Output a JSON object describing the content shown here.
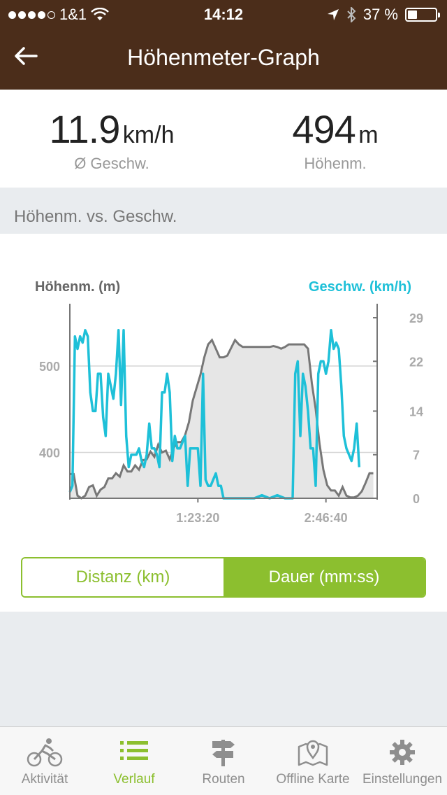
{
  "status_bar": {
    "carrier": "1&1",
    "time": "14:12",
    "battery": "37 %"
  },
  "nav": {
    "title": "Höhenmeter-Graph",
    "back_icon": "arrow-left-icon"
  },
  "stats": {
    "speed": {
      "value": "11.9",
      "unit": "km/h",
      "label": "Ø Geschw."
    },
    "elevation": {
      "value": "494",
      "unit": "m",
      "label": "Höhenm."
    }
  },
  "section": {
    "title": "Höhenm. vs. Geschw."
  },
  "chart_data": {
    "type": "line",
    "left_axis": {
      "label": "Höhenm. (m)",
      "ticks": [
        "400",
        "500"
      ],
      "ylim": [
        347,
        572
      ]
    },
    "right_axis": {
      "label": "Geschw. (km/h)",
      "ticks": [
        "0",
        "7",
        "14",
        "22",
        "29"
      ],
      "ylim": [
        0,
        29
      ]
    },
    "x_ticks": [
      {
        "label": "1:23:20",
        "value": 5000
      },
      {
        "label": "2:46:40",
        "value": 10000
      }
    ],
    "xlim": [
      0,
      12000
    ],
    "colors": {
      "elevation": "#777777",
      "speed": "#1ec0d8",
      "fill": "#e6e6e6"
    },
    "series": [
      {
        "values": [
          [
            0,
            375
          ],
          [
            150,
            375
          ],
          [
            300,
            350
          ],
          [
            450,
            347
          ],
          [
            600,
            350
          ],
          [
            750,
            360
          ],
          [
            900,
            362
          ],
          [
            1050,
            350
          ],
          [
            1200,
            357
          ],
          [
            1350,
            360
          ],
          [
            1500,
            370
          ],
          [
            1650,
            370
          ],
          [
            1800,
            376
          ],
          [
            1950,
            372
          ],
          [
            2100,
            385
          ],
          [
            2250,
            378
          ],
          [
            2400,
            378
          ],
          [
            2550,
            385
          ],
          [
            2700,
            380
          ],
          [
            2850,
            391
          ],
          [
            3000,
            392
          ],
          [
            3150,
            401
          ],
          [
            3300,
            395
          ],
          [
            3450,
            409
          ],
          [
            3600,
            400
          ],
          [
            3750,
            402
          ],
          [
            3900,
            392
          ],
          [
            4050,
            405
          ],
          [
            4200,
            412
          ],
          [
            4350,
            412
          ],
          [
            4500,
            420
          ],
          [
            4650,
            435
          ],
          [
            4800,
            460
          ],
          [
            4950,
            475
          ],
          [
            5100,
            490
          ],
          [
            5250,
            510
          ],
          [
            5400,
            525
          ],
          [
            5550,
            530
          ],
          [
            5700,
            520
          ],
          [
            5850,
            510
          ],
          [
            6000,
            510
          ],
          [
            6150,
            512
          ],
          [
            6300,
            521
          ],
          [
            6450,
            530
          ],
          [
            6600,
            525
          ],
          [
            6750,
            522
          ],
          [
            6900,
            522
          ],
          [
            7050,
            522
          ],
          [
            7200,
            522
          ],
          [
            7350,
            522
          ],
          [
            7500,
            522
          ],
          [
            7650,
            522
          ],
          [
            7800,
            522
          ],
          [
            7950,
            523
          ],
          [
            8100,
            522
          ],
          [
            8250,
            520
          ],
          [
            8400,
            522
          ],
          [
            8550,
            525
          ],
          [
            8700,
            525
          ],
          [
            8850,
            525
          ],
          [
            9000,
            525
          ],
          [
            9150,
            525
          ],
          [
            9300,
            520
          ],
          [
            9450,
            480
          ],
          [
            9600,
            450
          ],
          [
            9750,
            410
          ],
          [
            9900,
            380
          ],
          [
            10050,
            362
          ],
          [
            10200,
            356
          ],
          [
            10350,
            356
          ],
          [
            10500,
            350
          ],
          [
            10650,
            360
          ],
          [
            10800,
            350
          ],
          [
            10950,
            348
          ],
          [
            11100,
            348
          ],
          [
            11250,
            350
          ],
          [
            11400,
            355
          ],
          [
            11550,
            365
          ],
          [
            11700,
            376
          ],
          [
            11850,
            376
          ]
        ]
      },
      {
        "values": [
          [
            0,
            1
          ],
          [
            100,
            2
          ],
          [
            200,
            26
          ],
          [
            300,
            24
          ],
          [
            400,
            26
          ],
          [
            500,
            25
          ],
          [
            600,
            27
          ],
          [
            700,
            26
          ],
          [
            800,
            17
          ],
          [
            900,
            14
          ],
          [
            1000,
            14
          ],
          [
            1100,
            20
          ],
          [
            1200,
            20
          ],
          [
            1300,
            13
          ],
          [
            1400,
            10
          ],
          [
            1500,
            20
          ],
          [
            1600,
            18
          ],
          [
            1700,
            16
          ],
          [
            1800,
            20
          ],
          [
            1900,
            27
          ],
          [
            2000,
            15
          ],
          [
            2100,
            27
          ],
          [
            2200,
            10
          ],
          [
            2300,
            5
          ],
          [
            2400,
            7
          ],
          [
            2500,
            7
          ],
          [
            2600,
            7
          ],
          [
            2700,
            8
          ],
          [
            2800,
            6
          ],
          [
            2900,
            5
          ],
          [
            3000,
            7
          ],
          [
            3100,
            12
          ],
          [
            3200,
            8
          ],
          [
            3300,
            8
          ],
          [
            3400,
            7
          ],
          [
            3500,
            5
          ],
          [
            3600,
            17
          ],
          [
            3700,
            17
          ],
          [
            3800,
            20
          ],
          [
            3900,
            17
          ],
          [
            4000,
            6
          ],
          [
            4100,
            10
          ],
          [
            4200,
            8
          ],
          [
            4300,
            8
          ],
          [
            4400,
            9
          ],
          [
            4500,
            10
          ],
          [
            4600,
            2
          ],
          [
            4700,
            8
          ],
          [
            4800,
            8
          ],
          [
            4900,
            8
          ],
          [
            5000,
            8
          ],
          [
            5100,
            2
          ],
          [
            5200,
            20
          ],
          [
            5300,
            3
          ],
          [
            5400,
            2
          ],
          [
            5500,
            2
          ],
          [
            5600,
            3
          ],
          [
            5700,
            4
          ],
          [
            5800,
            2
          ],
          [
            5900,
            2
          ],
          [
            6000,
            0
          ],
          [
            6300,
            0
          ],
          [
            6600,
            0
          ],
          [
            6900,
            0
          ],
          [
            7200,
            0
          ],
          [
            7500,
            0.5
          ],
          [
            7800,
            0
          ],
          [
            8100,
            0.5
          ],
          [
            8400,
            0
          ],
          [
            8700,
            0
          ],
          [
            8800,
            20
          ],
          [
            8900,
            22
          ],
          [
            9000,
            10
          ],
          [
            9100,
            20
          ],
          [
            9200,
            18
          ],
          [
            9300,
            14
          ],
          [
            9400,
            8
          ],
          [
            9500,
            8
          ],
          [
            9600,
            2
          ],
          [
            9700,
            20
          ],
          [
            9800,
            22
          ],
          [
            9900,
            22
          ],
          [
            10000,
            20
          ],
          [
            10100,
            22
          ],
          [
            10200,
            27
          ],
          [
            10300,
            24
          ],
          [
            10400,
            25
          ],
          [
            10500,
            24
          ],
          [
            10600,
            18
          ],
          [
            10700,
            10
          ],
          [
            10800,
            8
          ],
          [
            10900,
            7
          ],
          [
            11000,
            6
          ],
          [
            11100,
            8
          ],
          [
            11200,
            12
          ],
          [
            11300,
            5
          ]
        ]
      }
    ]
  },
  "toggle": {
    "distance": "Distanz (km)",
    "duration": "Dauer (mm:ss)"
  },
  "tabs": [
    {
      "label": "Aktivität",
      "icon": "cyclist-icon"
    },
    {
      "label": "Verlauf",
      "icon": "list-icon"
    },
    {
      "label": "Routen",
      "icon": "signpost-icon"
    },
    {
      "label": "Offline Karte",
      "icon": "map-pin-icon"
    },
    {
      "label": "Einstellungen",
      "icon": "gear-icon"
    }
  ]
}
